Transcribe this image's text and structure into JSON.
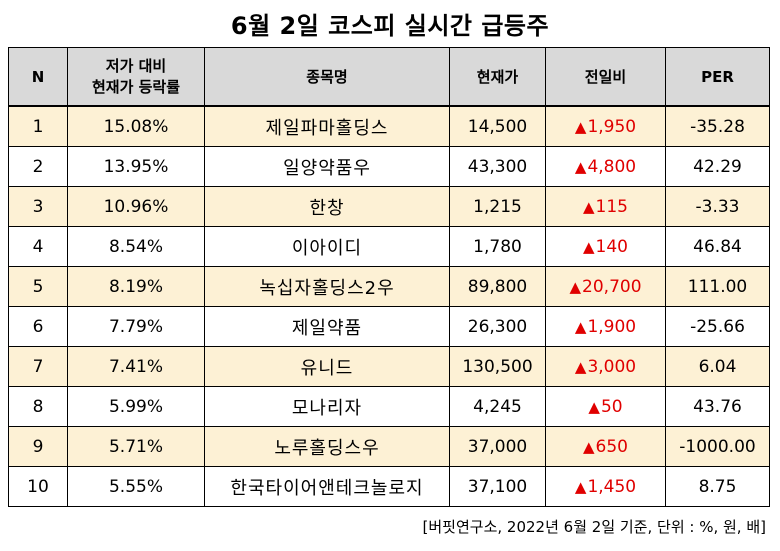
{
  "title": "6월 2일 코스피 실시간 급등주",
  "headers": {
    "n": "N",
    "ratio_line1": "저가 대비",
    "ratio_line2": "현재가 등락률",
    "name": "종목명",
    "price": "현재가",
    "change": "전일비",
    "per": "PER"
  },
  "rows": [
    {
      "n": "1",
      "ratio": "15.08%",
      "name": "제일파마홀딩스",
      "price": "14,500",
      "change": "1,950",
      "per": "-35.28"
    },
    {
      "n": "2",
      "ratio": "13.95%",
      "name": "일양약품우",
      "price": "43,300",
      "change": "4,800",
      "per": "42.29"
    },
    {
      "n": "3",
      "ratio": "10.96%",
      "name": "한창",
      "price": "1,215",
      "change": "115",
      "per": "-3.33"
    },
    {
      "n": "4",
      "ratio": "8.54%",
      "name": "이아이디",
      "price": "1,780",
      "change": "140",
      "per": "46.84"
    },
    {
      "n": "5",
      "ratio": "8.19%",
      "name": "녹십자홀딩스2우",
      "price": "89,800",
      "change": "20,700",
      "per": "111.00"
    },
    {
      "n": "6",
      "ratio": "7.79%",
      "name": "제일약품",
      "price": "26,300",
      "change": "1,900",
      "per": "-25.66"
    },
    {
      "n": "7",
      "ratio": "7.41%",
      "name": "유니드",
      "price": "130,500",
      "change": "3,000",
      "per": "6.04"
    },
    {
      "n": "8",
      "ratio": "5.99%",
      "name": "모나리자",
      "price": "4,245",
      "change": "50",
      "per": "43.76"
    },
    {
      "n": "9",
      "ratio": "5.71%",
      "name": "노루홀딩스우",
      "price": "37,000",
      "change": "650",
      "per": "-1000.00"
    },
    {
      "n": "10",
      "ratio": "5.55%",
      "name": "한국타이어앤테크놀로지",
      "price": "37,100",
      "change": "1,450",
      "per": "8.75"
    }
  ],
  "up_symbol": "▲",
  "footnote": "[버핏연구소, 2022년 6월 2일 기준, 단위 : %, 원, 배]",
  "colors": {
    "header_bg": "#d9d9d9",
    "odd_row_bg": "#fdf1d5",
    "even_row_bg": "#ffffff",
    "up": "#e00000"
  }
}
